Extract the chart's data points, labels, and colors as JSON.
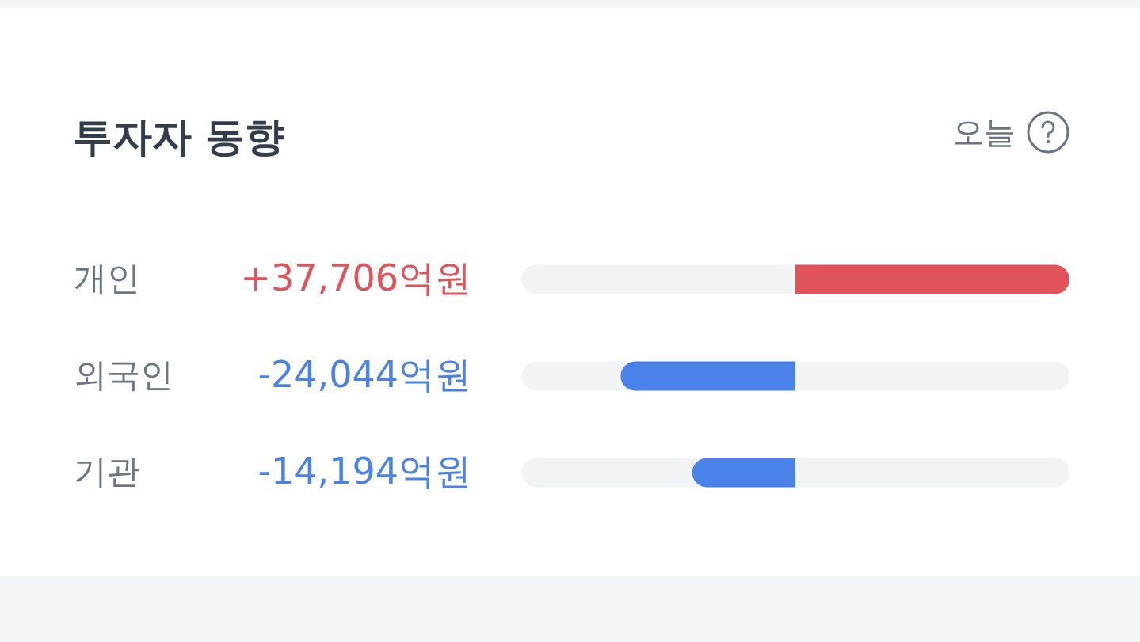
{
  "chart_data": {
    "type": "bar",
    "orientation": "horizontal",
    "title": "투자자 동향",
    "subtitle": "오늘",
    "categories": [
      "개인",
      "외국인",
      "기관"
    ],
    "values": [
      37706,
      -24044,
      -14194
    ],
    "colors": [
      "#e0535a",
      "#4a82ea",
      "#4a82ea"
    ],
    "value_labels": [
      "+37,706억원",
      "-24,044억원",
      "-14,194억원"
    ],
    "xlim": [
      -37706,
      37706
    ],
    "tick_labels": "y"
  }
}
